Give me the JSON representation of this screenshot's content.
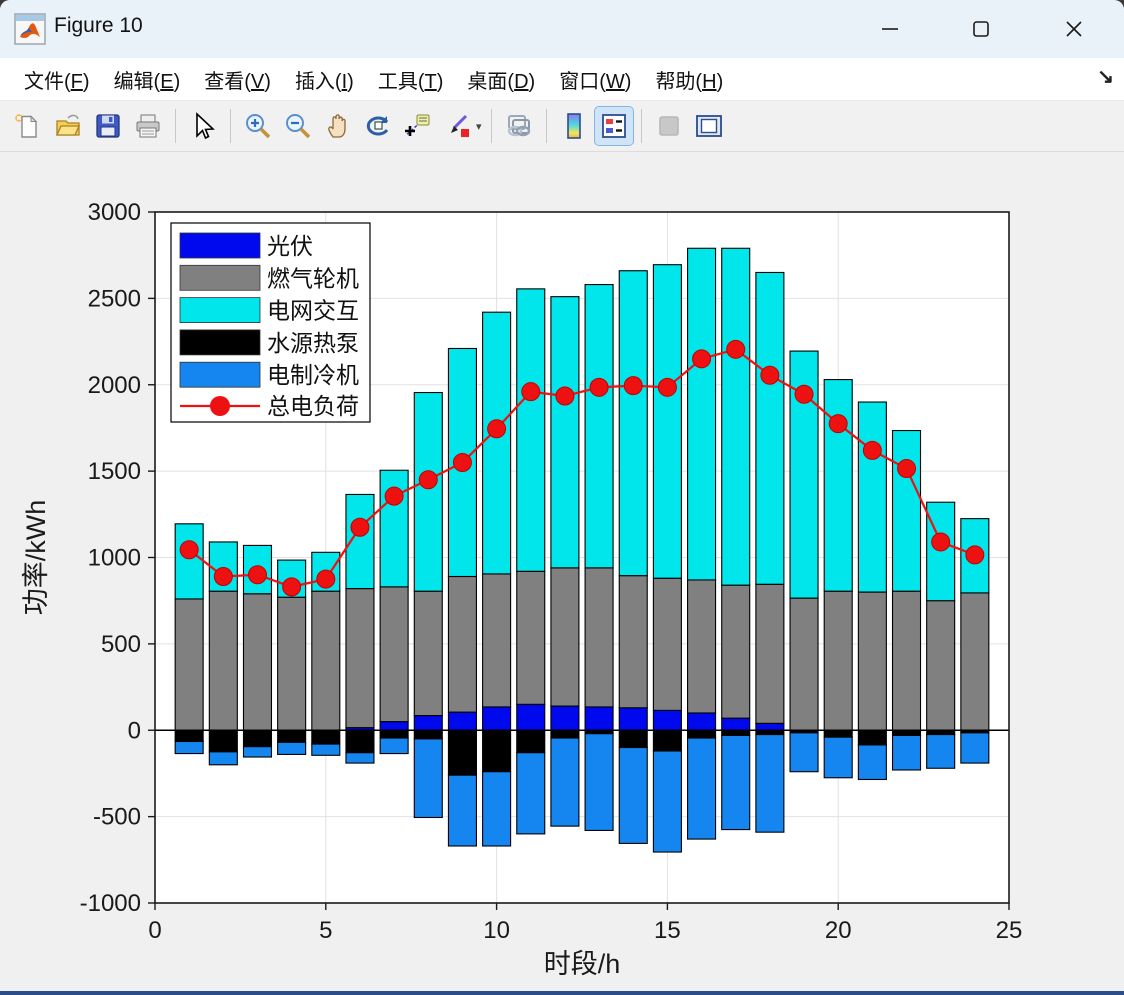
{
  "window": {
    "title": "Figure 10",
    "controls": [
      {
        "name": "minimize",
        "glyph": "─"
      },
      {
        "name": "maximize",
        "glyph": "▢"
      },
      {
        "name": "close",
        "glyph": "✕"
      }
    ]
  },
  "menu": {
    "items": [
      {
        "text": "文件",
        "key": "F"
      },
      {
        "text": "编辑",
        "key": "E"
      },
      {
        "text": "查看",
        "key": "V"
      },
      {
        "text": "插入",
        "key": "I"
      },
      {
        "text": "工具",
        "key": "T"
      },
      {
        "text": "桌面",
        "key": "D"
      },
      {
        "text": "窗口",
        "key": "W"
      },
      {
        "text": "帮助",
        "key": "H"
      }
    ],
    "dock_arrow": "↘"
  },
  "toolbar": {
    "icons": [
      "new-figure-icon",
      "open-file-icon",
      "save-figure-icon",
      "print-figure-icon",
      "edit-plot-icon",
      "zoom-in-icon",
      "zoom-out-icon",
      "pan-icon",
      "rotate-3d-icon",
      "data-cursor-icon",
      "brush-icon",
      "link-plot-icon",
      "insert-colorbar-icon",
      "insert-legend-icon",
      "hide-plot-tools-icon",
      "show-plot-tools-icon"
    ],
    "active_button": "insert-legend-icon"
  },
  "chart_data": {
    "type": "bar",
    "subtype": "stacked-bars-with-line-overlay",
    "x": [
      1,
      2,
      3,
      4,
      5,
      6,
      7,
      8,
      9,
      10,
      11,
      12,
      13,
      14,
      15,
      16,
      17,
      18,
      19,
      20,
      21,
      22,
      23,
      24
    ],
    "xlabel": "时段/h",
    "ylabel": "功率/kWh",
    "xlim": [
      0,
      25
    ],
    "ylim": [
      -1000,
      3000
    ],
    "xticks": [
      0,
      5,
      10,
      15,
      20,
      25
    ],
    "yticks": [
      3000,
      2500,
      2000,
      1500,
      1000,
      500,
      0,
      -500,
      -1000
    ],
    "grid": true,
    "legend_position": "top-left-inside",
    "bar_series": [
      {
        "name": "光伏",
        "color": "#0008EE",
        "values": [
          0,
          0,
          0,
          0,
          0,
          15,
          50,
          85,
          105,
          135,
          150,
          140,
          135,
          130,
          115,
          100,
          70,
          40,
          0,
          0,
          0,
          0,
          0,
          0
        ]
      },
      {
        "name": "燃气轮机",
        "color": "#808080",
        "values": [
          760,
          805,
          790,
          770,
          805,
          805,
          780,
          720,
          785,
          770,
          770,
          800,
          805,
          765,
          765,
          770,
          770,
          805,
          765,
          805,
          800,
          805,
          750,
          795
        ]
      },
      {
        "name": "电网交互",
        "color": "#00E6EA",
        "values": [
          435,
          285,
          280,
          215,
          225,
          545,
          675,
          1150,
          1320,
          1515,
          1635,
          1570,
          1640,
          1765,
          1815,
          1920,
          1950,
          1805,
          1430,
          1225,
          1100,
          930,
          570,
          430
        ]
      },
      {
        "name": "水源热泵",
        "color": "#000000",
        "values": [
          -65,
          -125,
          -95,
          -70,
          -80,
          -130,
          -45,
          -50,
          -260,
          -240,
          -130,
          -45,
          -20,
          -100,
          -120,
          -45,
          -30,
          -25,
          -15,
          -40,
          -85,
          -30,
          -25,
          -15
        ]
      },
      {
        "name": "电制冷机",
        "color": "#1585F0",
        "values": [
          -70,
          -75,
          -60,
          -70,
          -65,
          -60,
          -90,
          -455,
          -410,
          -430,
          -470,
          -510,
          -560,
          -555,
          -585,
          -585,
          -545,
          -565,
          -225,
          -235,
          -200,
          -200,
          -195,
          -175
        ]
      }
    ],
    "line_series": {
      "name": "总电负荷",
      "color": "#EE1111",
      "marker": "circle",
      "values": [
        1045,
        890,
        900,
        830,
        875,
        1175,
        1355,
        1450,
        1550,
        1745,
        1960,
        1935,
        1985,
        1995,
        1985,
        2150,
        2205,
        2055,
        1945,
        1775,
        1620,
        1515,
        1090,
        1015
      ]
    }
  }
}
